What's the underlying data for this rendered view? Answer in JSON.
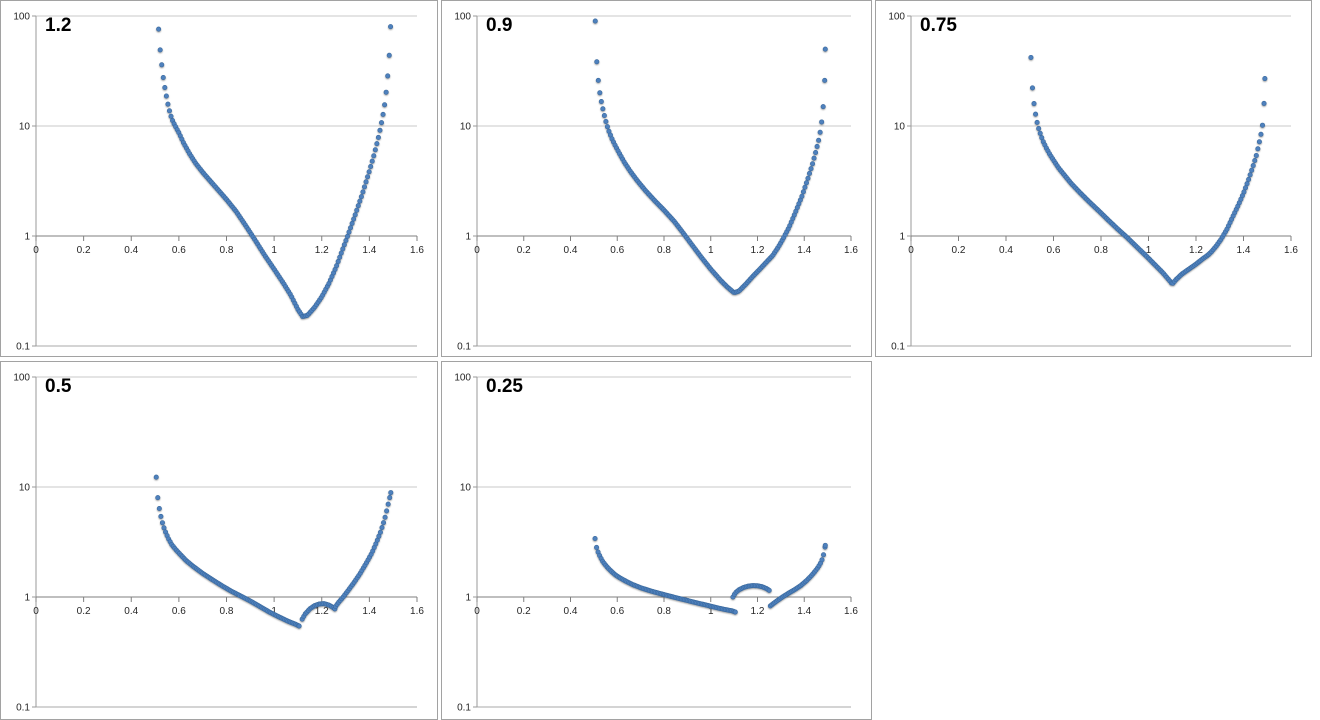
{
  "page": {
    "background": "#ffffff"
  },
  "style": {
    "marker_fill": "#4f81bd",
    "marker_stroke": "#39699f",
    "grid_color": "#c9c9c9",
    "axis_color": "#7f7f7f",
    "bottom_line_color": "#a9a9a9",
    "left_axis_color": "#9a9a9a",
    "label_color": "#262626",
    "panel_border": "#a2a2a2"
  },
  "axes": {
    "x_tick_labels": [
      "0",
      "0.2",
      "0.4",
      "0.6",
      "0.8",
      "1",
      "1.2",
      "1.4",
      "1.6"
    ],
    "x_tick_values": [
      0,
      0.2,
      0.4,
      0.6,
      0.8,
      1,
      1.2,
      1.4,
      1.6
    ],
    "x_range": [
      0,
      1.6
    ],
    "y_tick_labels": [
      "100",
      "10",
      "1",
      "0.1"
    ],
    "y_tick_values": [
      100,
      10,
      1,
      0.1
    ],
    "y_range": [
      0.1,
      100
    ],
    "y_scale": "log",
    "gridlines": "horizontal at each decade; x axis crosses at y=1"
  },
  "chart_data": [
    {
      "type": "scatter",
      "title": "1.2",
      "marker": "circle",
      "x_range": [
        0,
        1.6
      ],
      "y_range": [
        0.1,
        100
      ],
      "y_scale": "log",
      "segments": [
        [
          [
            0.515,
            76
          ],
          [
            0.519,
            57
          ],
          [
            0.523,
            45
          ],
          [
            0.528,
            36
          ],
          [
            0.533,
            29
          ],
          [
            0.54,
            23
          ],
          [
            0.548,
            18.5
          ],
          [
            0.556,
            15
          ],
          [
            0.565,
            12.6
          ],
          [
            0.575,
            11
          ],
          [
            0.588,
            9.7
          ],
          [
            0.6,
            8.7
          ],
          [
            0.62,
            7.0
          ],
          [
            0.645,
            5.6
          ],
          [
            0.67,
            4.6
          ],
          [
            0.7,
            3.8
          ],
          [
            0.73,
            3.2
          ],
          [
            0.76,
            2.7
          ],
          [
            0.8,
            2.15
          ],
          [
            0.84,
            1.68
          ],
          [
            0.88,
            1.25
          ],
          [
            0.92,
            0.92
          ],
          [
            0.96,
            0.67
          ],
          [
            1.0,
            0.5
          ],
          [
            1.04,
            0.37
          ],
          [
            1.07,
            0.29
          ],
          [
            1.1,
            0.215
          ],
          [
            1.12,
            0.185
          ],
          [
            1.14,
            0.19
          ],
          [
            1.17,
            0.225
          ],
          [
            1.2,
            0.28
          ],
          [
            1.23,
            0.37
          ],
          [
            1.26,
            0.52
          ],
          [
            1.29,
            0.78
          ],
          [
            1.31,
            1.02
          ],
          [
            1.34,
            1.55
          ],
          [
            1.37,
            2.4
          ],
          [
            1.4,
            3.9
          ],
          [
            1.42,
            5.5
          ],
          [
            1.44,
            8.2
          ],
          [
            1.452,
            11
          ],
          [
            1.461,
            14
          ],
          [
            1.468,
            18
          ],
          [
            1.474,
            24
          ],
          [
            1.479,
            32
          ],
          [
            1.483,
            42
          ],
          [
            1.486,
            55
          ],
          [
            1.489,
            80
          ]
        ]
      ]
    },
    {
      "type": "scatter",
      "title": "0.9",
      "marker": "circle",
      "x_range": [
        0,
        1.6
      ],
      "y_range": [
        0.1,
        100
      ],
      "y_scale": "log",
      "segments": [
        [
          [
            0.506,
            90
          ],
          [
            0.51,
            47
          ],
          [
            0.514,
            34
          ],
          [
            0.519,
            26
          ],
          [
            0.524,
            21
          ],
          [
            0.53,
            17.5
          ],
          [
            0.538,
            14.5
          ],
          [
            0.546,
            12.2
          ],
          [
            0.555,
            10.3
          ],
          [
            0.565,
            8.9
          ],
          [
            0.578,
            7.6
          ],
          [
            0.592,
            6.6
          ],
          [
            0.61,
            5.6
          ],
          [
            0.63,
            4.7
          ],
          [
            0.655,
            3.9
          ],
          [
            0.685,
            3.2
          ],
          [
            0.72,
            2.6
          ],
          [
            0.76,
            2.1
          ],
          [
            0.8,
            1.72
          ],
          [
            0.845,
            1.35
          ],
          [
            0.88,
            1.08
          ],
          [
            0.92,
            0.83
          ],
          [
            0.96,
            0.64
          ],
          [
            1.0,
            0.5
          ],
          [
            1.04,
            0.4
          ],
          [
            1.07,
            0.345
          ],
          [
            1.1,
            0.305
          ],
          [
            1.12,
            0.315
          ],
          [
            1.15,
            0.365
          ],
          [
            1.18,
            0.43
          ],
          [
            1.21,
            0.5
          ],
          [
            1.24,
            0.585
          ],
          [
            1.265,
            0.665
          ],
          [
            1.29,
            0.8
          ],
          [
            1.31,
            0.95
          ],
          [
            1.335,
            1.2
          ],
          [
            1.36,
            1.6
          ],
          [
            1.39,
            2.3
          ],
          [
            1.415,
            3.3
          ],
          [
            1.435,
            4.5
          ],
          [
            1.45,
            5.9
          ],
          [
            1.462,
            7.5
          ],
          [
            1.471,
            9.5
          ],
          [
            1.477,
            12
          ],
          [
            1.481,
            15
          ],
          [
            1.485,
            19
          ],
          [
            1.4875,
            26
          ],
          [
            1.49,
            50
          ]
        ]
      ]
    },
    {
      "type": "scatter",
      "title": "0.75",
      "marker": "circle",
      "x_range": [
        0,
        1.6
      ],
      "y_range": [
        0.1,
        100
      ],
      "y_scale": "log",
      "segments": [
        [
          [
            0.505,
            42
          ],
          [
            0.509,
            26.5
          ],
          [
            0.513,
            20
          ],
          [
            0.518,
            16
          ],
          [
            0.524,
            13
          ],
          [
            0.53,
            11
          ],
          [
            0.538,
            9.4
          ],
          [
            0.547,
            8.2
          ],
          [
            0.557,
            7.2
          ],
          [
            0.57,
            6.3
          ],
          [
            0.585,
            5.5
          ],
          [
            0.6,
            4.9
          ],
          [
            0.62,
            4.2
          ],
          [
            0.645,
            3.6
          ],
          [
            0.675,
            3.0
          ],
          [
            0.71,
            2.5
          ],
          [
            0.75,
            2.05
          ],
          [
            0.79,
            1.7
          ],
          [
            0.83,
            1.4
          ],
          [
            0.87,
            1.16
          ],
          [
            0.91,
            0.97
          ],
          [
            0.95,
            0.8
          ],
          [
            0.99,
            0.66
          ],
          [
            1.03,
            0.54
          ],
          [
            1.06,
            0.465
          ],
          [
            1.09,
            0.39
          ],
          [
            1.1,
            0.365
          ],
          [
            1.115,
            0.4
          ],
          [
            1.14,
            0.45
          ],
          [
            1.17,
            0.5
          ],
          [
            1.2,
            0.555
          ],
          [
            1.23,
            0.625
          ],
          [
            1.25,
            0.67
          ],
          [
            1.265,
            0.72
          ],
          [
            1.285,
            0.81
          ],
          [
            1.305,
            0.93
          ],
          [
            1.33,
            1.15
          ],
          [
            1.355,
            1.5
          ],
          [
            1.38,
            1.95
          ],
          [
            1.4,
            2.45
          ],
          [
            1.42,
            3.2
          ],
          [
            1.44,
            4.3
          ],
          [
            1.454,
            5.4
          ],
          [
            1.464,
            6.7
          ],
          [
            1.472,
            8.1
          ],
          [
            1.478,
            9.4
          ],
          [
            1.482,
            11
          ],
          [
            1.485,
            13.5
          ],
          [
            1.4875,
            18
          ],
          [
            1.49,
            27
          ]
        ]
      ]
    },
    {
      "type": "scatter",
      "title": "0.5",
      "marker": "circle",
      "x_range": [
        0,
        1.6
      ],
      "y_range": [
        0.1,
        100
      ],
      "y_scale": "log",
      "segments": [
        [
          [
            0.505,
            12.3
          ],
          [
            0.509,
            8.9
          ],
          [
            0.514,
            7.2
          ],
          [
            0.52,
            6.0
          ],
          [
            0.527,
            5.1
          ],
          [
            0.535,
            4.4
          ],
          [
            0.545,
            3.85
          ],
          [
            0.556,
            3.4
          ],
          [
            0.57,
            3.0
          ],
          [
            0.587,
            2.7
          ],
          [
            0.605,
            2.45
          ],
          [
            0.63,
            2.15
          ],
          [
            0.66,
            1.9
          ],
          [
            0.7,
            1.64
          ],
          [
            0.74,
            1.44
          ],
          [
            0.78,
            1.27
          ],
          [
            0.82,
            1.13
          ],
          [
            0.86,
            1.02
          ],
          [
            0.9,
            0.92
          ],
          [
            0.94,
            0.82
          ],
          [
            0.98,
            0.73
          ],
          [
            1.02,
            0.66
          ],
          [
            1.06,
            0.6
          ],
          [
            1.09,
            0.565
          ],
          [
            1.105,
            0.545
          ]
        ],
        [
          [
            1.118,
            0.63
          ],
          [
            1.13,
            0.7
          ],
          [
            1.15,
            0.78
          ],
          [
            1.17,
            0.835
          ],
          [
            1.19,
            0.865
          ],
          [
            1.21,
            0.87
          ],
          [
            1.23,
            0.845
          ],
          [
            1.245,
            0.81
          ],
          [
            1.255,
            0.78
          ]
        ],
        [
          [
            1.258,
            0.82
          ],
          [
            1.27,
            0.89
          ],
          [
            1.29,
            1.0
          ],
          [
            1.31,
            1.14
          ],
          [
            1.335,
            1.35
          ],
          [
            1.36,
            1.62
          ],
          [
            1.385,
            2.0
          ],
          [
            1.41,
            2.5
          ],
          [
            1.43,
            3.15
          ],
          [
            1.447,
            3.9
          ],
          [
            1.459,
            4.7
          ],
          [
            1.468,
            5.5
          ],
          [
            1.475,
            6.4
          ],
          [
            1.481,
            7.3
          ],
          [
            1.486,
            8.1
          ],
          [
            1.49,
            8.9
          ]
        ]
      ]
    },
    {
      "type": "scatter",
      "title": "0.25",
      "marker": "circle",
      "x_range": [
        0,
        1.6
      ],
      "y_range": [
        0.1,
        100
      ],
      "y_scale": "log",
      "segments": [
        [
          [
            0.505,
            3.4
          ],
          [
            0.509,
            2.95
          ],
          [
            0.514,
            2.7
          ],
          [
            0.52,
            2.5
          ],
          [
            0.528,
            2.3
          ],
          [
            0.537,
            2.12
          ],
          [
            0.548,
            1.97
          ],
          [
            0.56,
            1.84
          ],
          [
            0.575,
            1.71
          ],
          [
            0.592,
            1.59
          ],
          [
            0.61,
            1.5
          ],
          [
            0.635,
            1.4
          ],
          [
            0.665,
            1.3
          ],
          [
            0.7,
            1.215
          ],
          [
            0.74,
            1.14
          ],
          [
            0.78,
            1.08
          ],
          [
            0.82,
            1.025
          ],
          [
            0.86,
            0.975
          ],
          [
            0.9,
            0.93
          ],
          [
            0.94,
            0.885
          ],
          [
            0.98,
            0.845
          ],
          [
            1.02,
            0.805
          ],
          [
            1.06,
            0.77
          ],
          [
            1.09,
            0.75
          ],
          [
            1.105,
            0.73
          ]
        ],
        [
          [
            1.095,
            1.0
          ],
          [
            1.105,
            1.09
          ],
          [
            1.12,
            1.16
          ],
          [
            1.14,
            1.22
          ],
          [
            1.16,
            1.255
          ],
          [
            1.18,
            1.27
          ],
          [
            1.2,
            1.265
          ],
          [
            1.22,
            1.24
          ],
          [
            1.24,
            1.19
          ],
          [
            1.25,
            1.15
          ]
        ],
        [
          [
            1.255,
            0.83
          ],
          [
            1.27,
            0.88
          ],
          [
            1.29,
            0.945
          ],
          [
            1.31,
            1.01
          ],
          [
            1.335,
            1.09
          ],
          [
            1.36,
            1.17
          ],
          [
            1.385,
            1.27
          ],
          [
            1.41,
            1.41
          ],
          [
            1.43,
            1.56
          ],
          [
            1.447,
            1.72
          ],
          [
            1.459,
            1.86
          ],
          [
            1.468,
            2.0
          ],
          [
            1.475,
            2.15
          ],
          [
            1.481,
            2.35
          ],
          [
            1.485,
            2.55
          ],
          [
            1.488,
            2.75
          ],
          [
            1.49,
            2.95
          ]
        ]
      ]
    }
  ]
}
